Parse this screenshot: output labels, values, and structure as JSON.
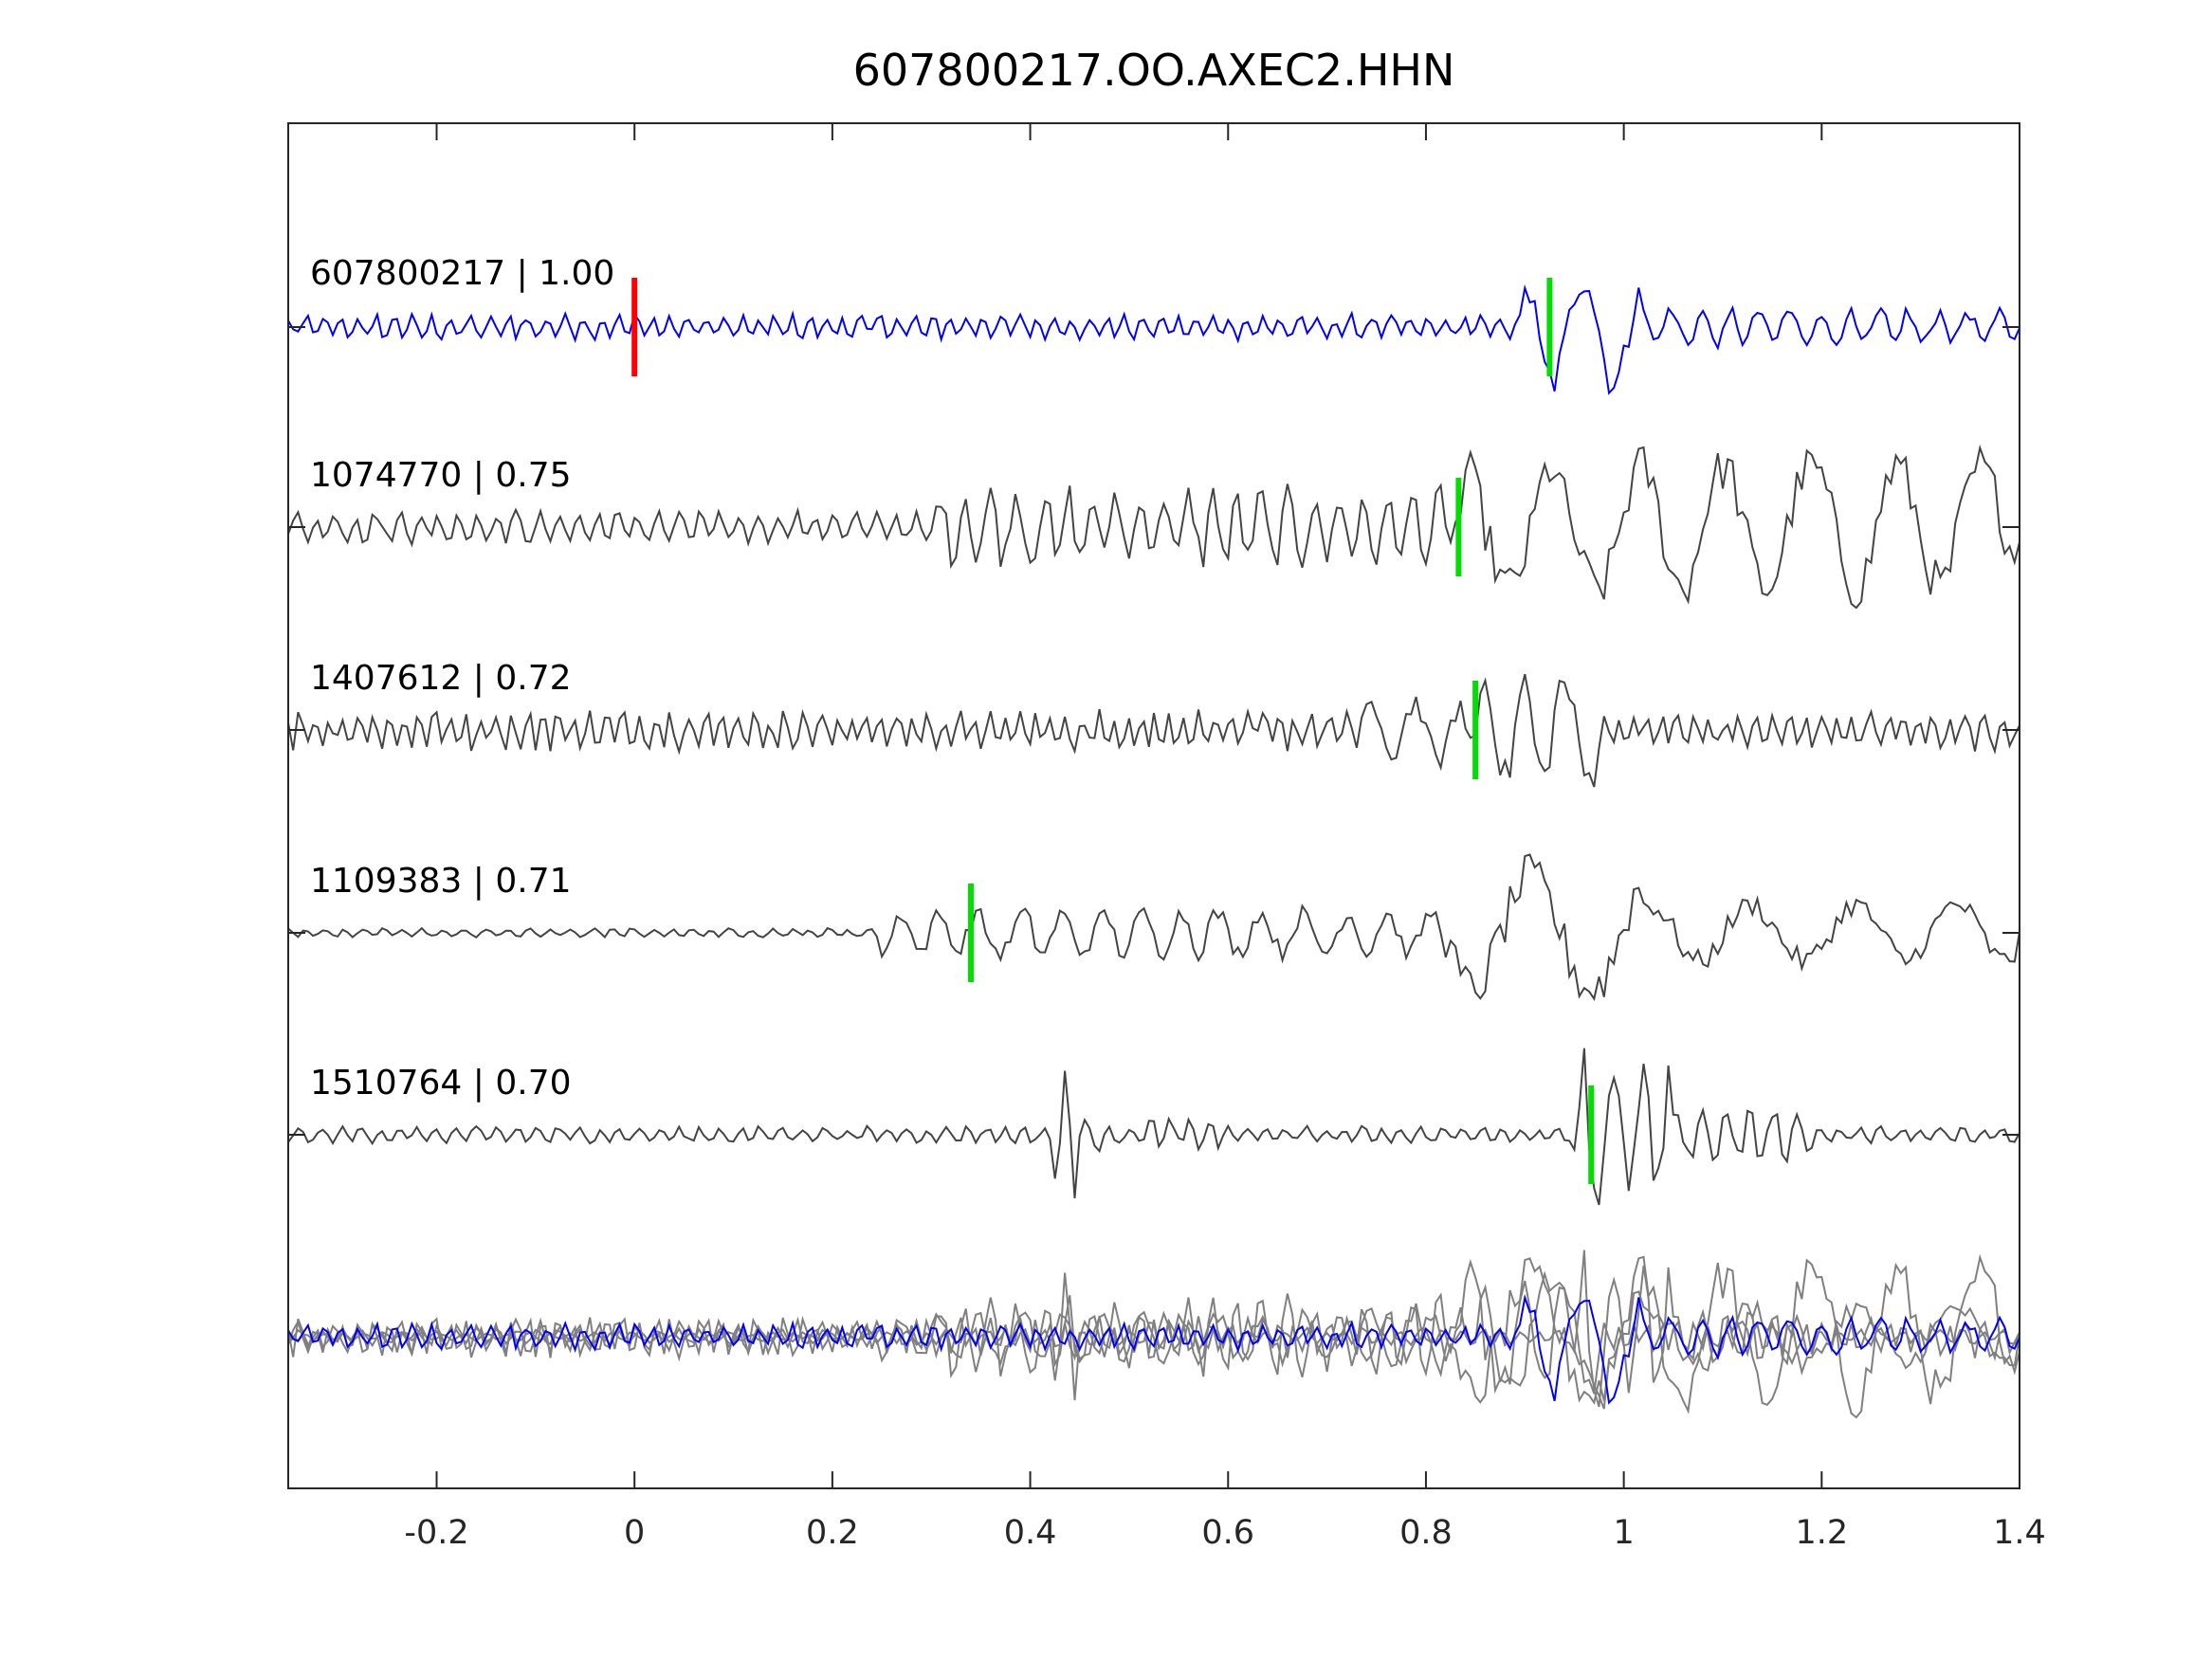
{
  "chart_data": {
    "type": "line",
    "title": "607800217.OO.AXEC2.HHN",
    "xlabel": "",
    "ylabel": "",
    "xlim": [
      -0.35,
      1.4
    ],
    "xticks": [
      -0.2,
      0,
      0.2,
      0.4,
      0.6,
      0.8,
      1,
      1.2,
      1.4
    ],
    "xtick_labels": [
      "-0.2",
      "0",
      "0.2",
      "0.4",
      "0.6",
      "0.8",
      "1",
      "1.2",
      "1.4"
    ],
    "grid": false,
    "reference_pick_time": 0,
    "traces": [
      {
        "label": "607800217 | 1.00",
        "id": "607800217",
        "cc": 1.0,
        "pick_time": 0.925,
        "color": "#0000ff"
      },
      {
        "label": "1074770 | 0.75",
        "id": "1074770",
        "cc": 0.75,
        "pick_time": 0.833,
        "color": "#444444"
      },
      {
        "label": "1407612 | 0.72",
        "id": "1407612",
        "cc": 0.72,
        "pick_time": 0.85,
        "color": "#444444"
      },
      {
        "label": "1109383 | 0.71",
        "id": "1109383",
        "cc": 0.71,
        "pick_time": 0.34,
        "color": "#444444"
      },
      {
        "label": "1510764 | 0.70",
        "id": "1510764",
        "cc": 0.7,
        "pick_time": 0.967,
        "color": "#444444"
      }
    ],
    "stack_overlay": {
      "colors": {
        "reference": "#0000ff",
        "others": "#808080"
      }
    },
    "colors": {
      "reference_pick": "#ff0000",
      "pick": "#00e000",
      "axis": "#262626"
    }
  }
}
